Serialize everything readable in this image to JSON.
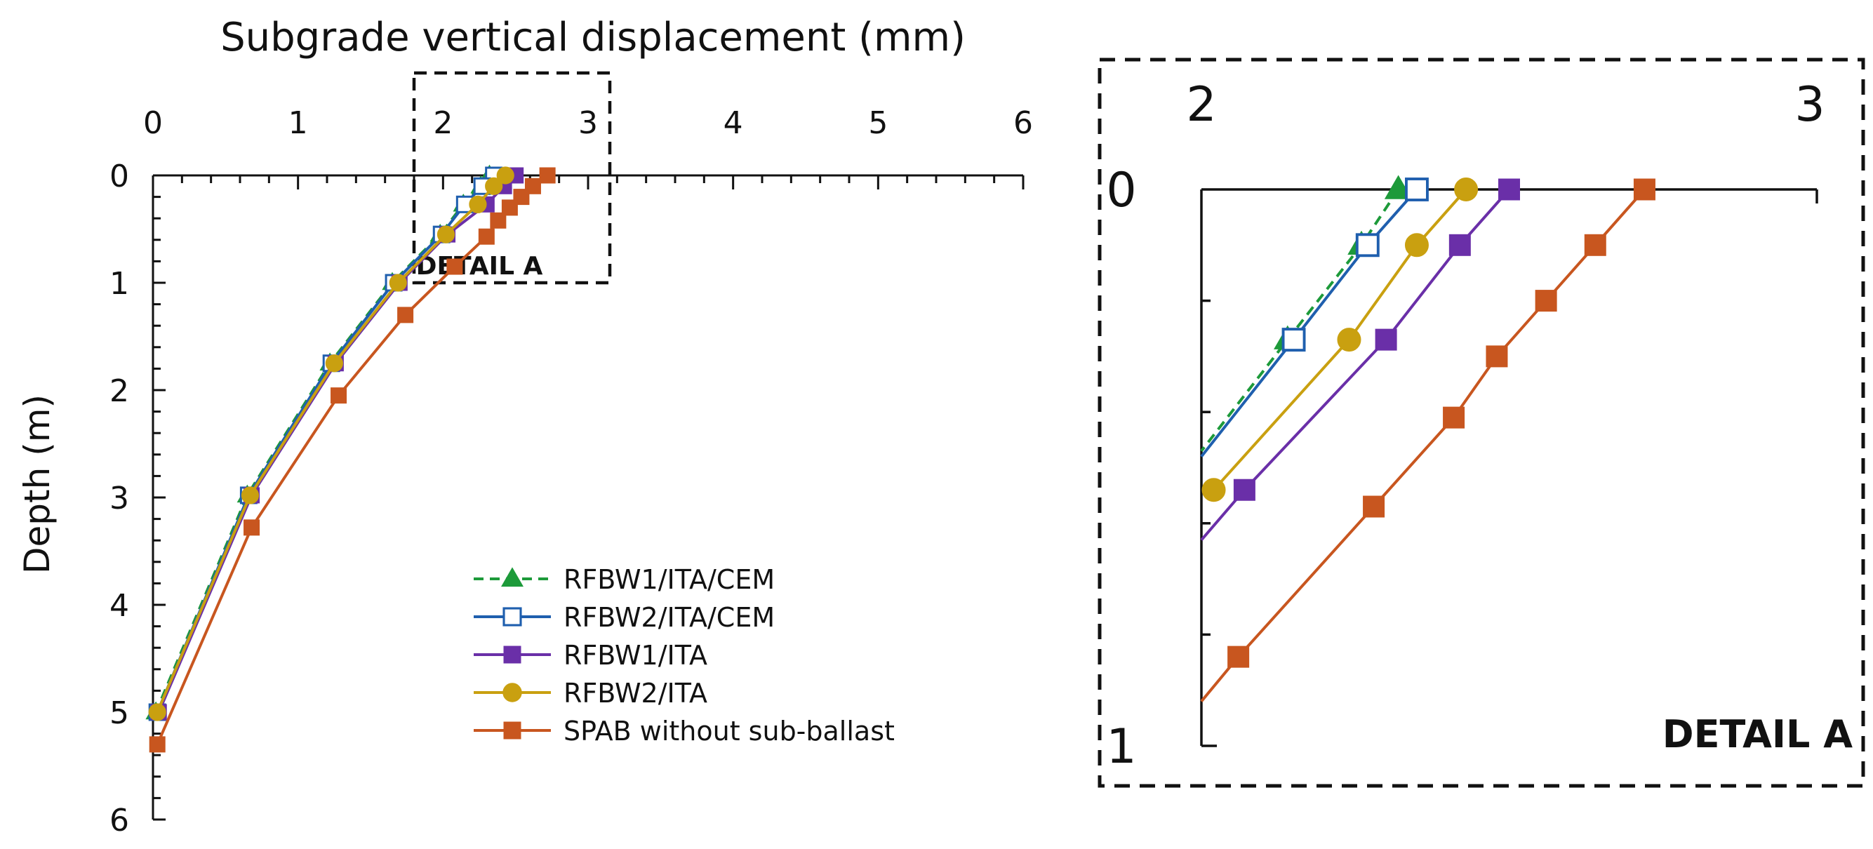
{
  "chart_data": [
    {
      "type": "line",
      "title": "Subgrade vertical displacement (mm)",
      "xlabel": "Subgrade vertical displacement (mm)",
      "ylabel": "Depth (m)",
      "xlim": [
        0,
        6
      ],
      "ylim": [
        0,
        6
      ],
      "x_ticks": [
        "0",
        "1",
        "2",
        "3",
        "4",
        "5",
        "6"
      ],
      "y_ticks": [
        "0",
        "1",
        "2",
        "3",
        "4",
        "5",
        "6"
      ],
      "x_axis_position": "top",
      "y_inverted": true,
      "inset_label": "DETAIL A",
      "legend": [
        "RFBW1/ITA/CEM",
        "RFBW2/ITA/CEM",
        "RFBW1/ITA",
        "RFBW2/ITA",
        "SPAB without sub-ballast"
      ],
      "series": [
        {
          "name": "RFBW1/ITA/CEM",
          "color": "#1d9a3a",
          "marker": "triangle",
          "dashed": true,
          "points": [
            [
              2.32,
              0.0
            ],
            [
              2.26,
              0.1
            ],
            [
              2.14,
              0.27
            ],
            [
              1.98,
              0.55
            ],
            [
              1.65,
              1.0
            ],
            [
              1.22,
              1.75
            ],
            [
              0.65,
              2.98
            ],
            [
              0.02,
              5.0
            ]
          ]
        },
        {
          "name": "RFBW2/ITA/CEM",
          "color": "#1f5fae",
          "marker": "square-open",
          "dashed": false,
          "points": [
            [
              2.35,
              0.0
            ],
            [
              2.27,
              0.1
            ],
            [
              2.15,
              0.27
            ],
            [
              1.99,
              0.55
            ],
            [
              1.66,
              1.0
            ],
            [
              1.23,
              1.75
            ],
            [
              0.66,
              2.98
            ],
            [
              0.03,
              5.0
            ]
          ]
        },
        {
          "name": "RFBW1/ITA",
          "color": "#6a2fa8",
          "marker": "square",
          "dashed": false,
          "points": [
            [
              2.5,
              0.0
            ],
            [
              2.42,
              0.1
            ],
            [
              2.3,
              0.27
            ],
            [
              2.03,
              0.55
            ],
            [
              1.7,
              1.0
            ],
            [
              1.26,
              1.75
            ],
            [
              0.68,
              2.98
            ],
            [
              0.04,
              5.0
            ]
          ]
        },
        {
          "name": "RFBW2/ITA",
          "color": "#c9a010",
          "marker": "circle",
          "dashed": false,
          "points": [
            [
              2.43,
              0.0
            ],
            [
              2.35,
              0.1
            ],
            [
              2.24,
              0.27
            ],
            [
              2.02,
              0.55
            ],
            [
              1.69,
              1.0
            ],
            [
              1.25,
              1.75
            ],
            [
              0.67,
              2.98
            ],
            [
              0.03,
              5.0
            ]
          ]
        },
        {
          "name": "SPAB without sub-ballast",
          "color": "#c8561f",
          "marker": "square",
          "dashed": false,
          "points": [
            [
              2.72,
              0.0
            ],
            [
              2.62,
              0.1
            ],
            [
              2.54,
              0.2
            ],
            [
              2.46,
              0.3
            ],
            [
              2.38,
              0.42
            ],
            [
              2.3,
              0.57
            ],
            [
              2.08,
              0.85
            ],
            [
              1.74,
              1.3
            ],
            [
              1.28,
              2.05
            ],
            [
              0.68,
              3.28
            ],
            [
              0.03,
              5.3
            ]
          ]
        }
      ]
    },
    {
      "type": "line",
      "title": "DETAIL A",
      "x_ticks": [
        "2",
        "3"
      ],
      "y_ticks": [
        "0",
        "1"
      ],
      "xlim": [
        2,
        3
      ],
      "ylim": [
        0,
        1
      ],
      "series": [
        {
          "name": "RFBW1/ITA/CEM",
          "points": [
            [
              2.32,
              0.0
            ],
            [
              2.26,
              0.1
            ],
            [
              2.14,
              0.27
            ],
            [
              2.0,
              0.47
            ]
          ]
        },
        {
          "name": "RFBW2/ITA/CEM",
          "points": [
            [
              2.35,
              0.0
            ],
            [
              2.27,
              0.1
            ],
            [
              2.15,
              0.27
            ],
            [
              2.0,
              0.48
            ]
          ]
        },
        {
          "name": "RFBW1/ITA",
          "points": [
            [
              2.5,
              0.0
            ],
            [
              2.42,
              0.1
            ],
            [
              2.3,
              0.27
            ],
            [
              2.07,
              0.54
            ],
            [
              2.0,
              0.63
            ]
          ]
        },
        {
          "name": "RFBW2/ITA",
          "points": [
            [
              2.43,
              0.0
            ],
            [
              2.35,
              0.1
            ],
            [
              2.24,
              0.27
            ],
            [
              2.02,
              0.54
            ]
          ]
        },
        {
          "name": "SPAB without sub-ballast",
          "points": [
            [
              2.72,
              0.0
            ],
            [
              2.64,
              0.1
            ],
            [
              2.56,
              0.2
            ],
            [
              2.48,
              0.3
            ],
            [
              2.41,
              0.41
            ],
            [
              2.28,
              0.57
            ],
            [
              2.06,
              0.84
            ],
            [
              2.0,
              0.92
            ]
          ]
        }
      ]
    }
  ]
}
